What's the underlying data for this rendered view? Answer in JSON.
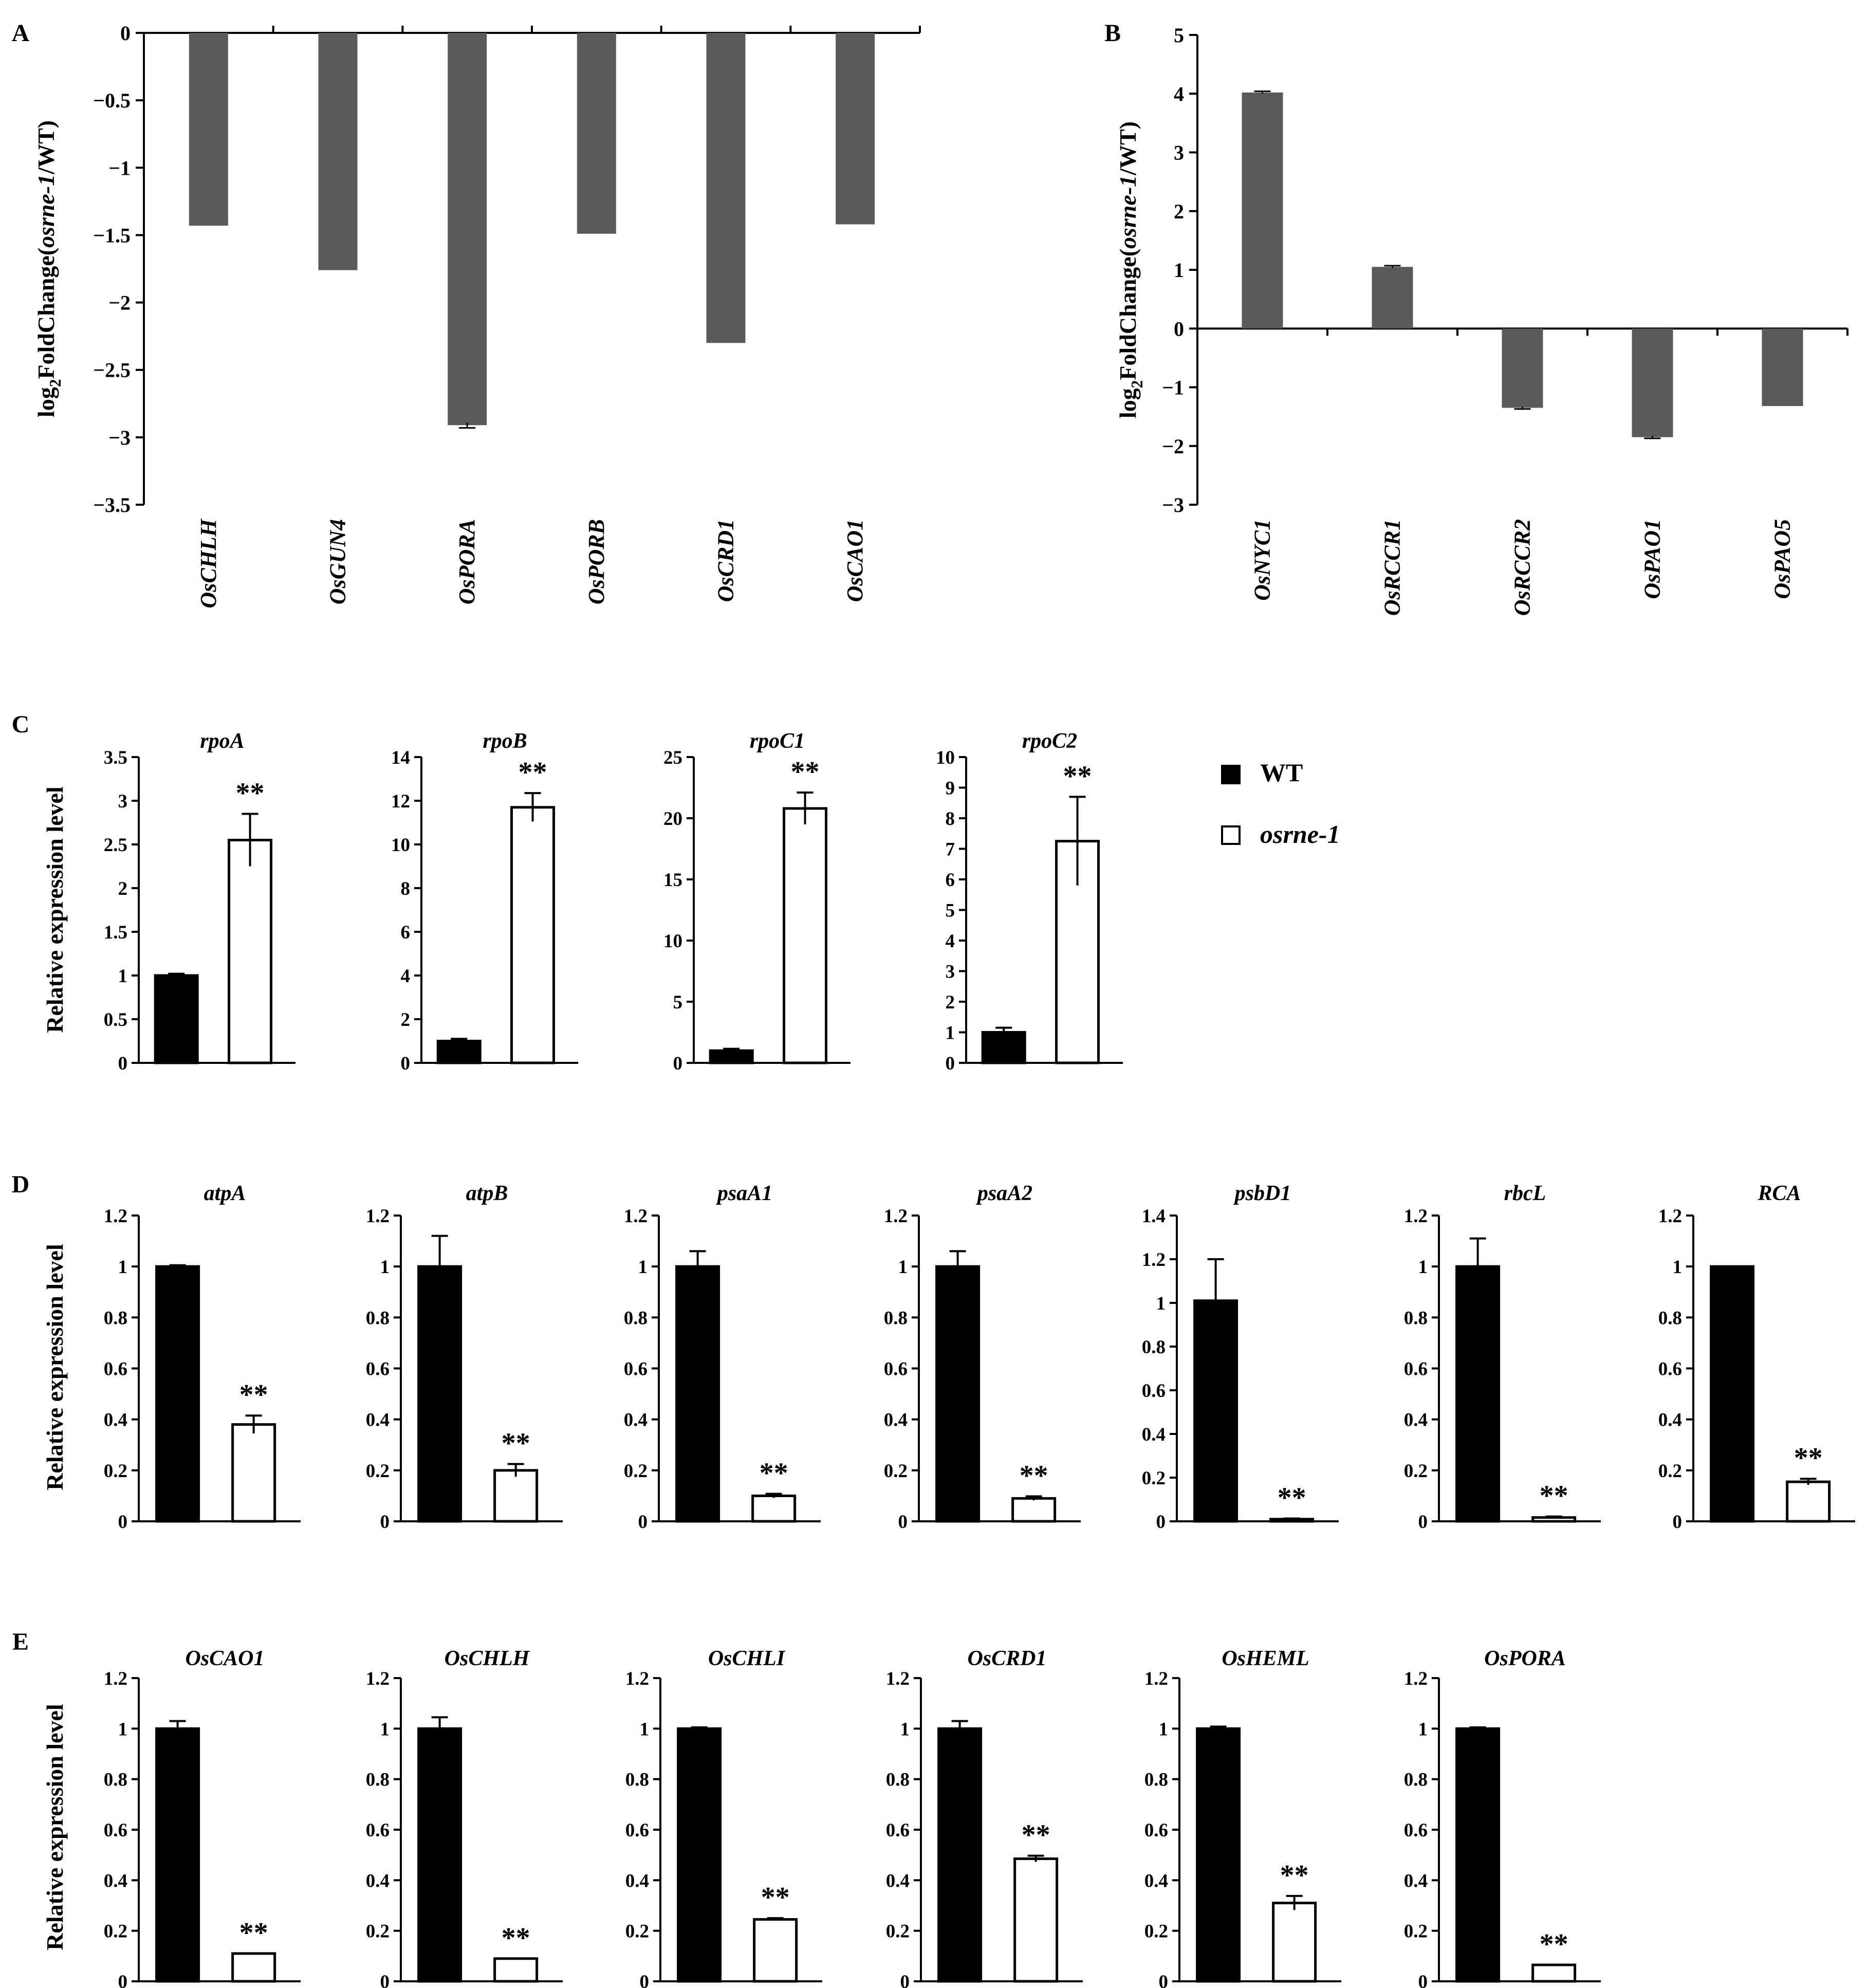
{
  "figure": {
    "panels": [
      "A",
      "B",
      "C",
      "D",
      "E"
    ],
    "ylabel_fold": "log2FoldChange(osrne-1/WT)",
    "ylabel_rel": "Relative expression level",
    "legend": {
      "wt": "WT",
      "mutant": "osrne-1"
    },
    "significance": "**"
  },
  "colors": {
    "fold_bar": "#5a5a5a",
    "wt_bar": "#000000",
    "mutant_bar": "#ffffff",
    "axis": "#000000"
  },
  "chart_data": [
    {
      "panel": "A",
      "type": "bar",
      "ylabel": "log2FoldChange(osrne-1/WT)",
      "ylim": [
        -3.5,
        0
      ],
      "yticks": [
        "0",
        "−0.5",
        "−1",
        "−1.5",
        "−2",
        "−2.5",
        "−3",
        "−3.5"
      ],
      "categories": [
        "OsCHLH",
        "OsGUN4",
        "OsPORA",
        "OsPORB",
        "OsCRD1",
        "OsCAO1"
      ],
      "values": [
        -1.43,
        -1.76,
        -2.91,
        -1.49,
        -2.3,
        -1.42
      ],
      "errors": [
        0,
        0,
        0.02,
        0,
        0,
        0
      ]
    },
    {
      "panel": "B",
      "type": "bar",
      "ylabel": "log2FoldChange(osrne-1/WT)",
      "ylim": [
        -3,
        5
      ],
      "yticks": [
        "5",
        "4",
        "3",
        "2",
        "1",
        "0",
        "−1",
        "−2",
        "−3"
      ],
      "categories": [
        "OsNYC1",
        "OsRCCR1",
        "OsRCCR2",
        "OsPAO1",
        "OsPAO5"
      ],
      "values": [
        4.02,
        1.05,
        -1.35,
        -1.85,
        -1.32
      ],
      "errors": [
        0.02,
        0.02,
        0.02,
        0.02,
        0
      ]
    },
    {
      "panel": "C",
      "type": "bar",
      "ylabel": "Relative expression level",
      "subplots": [
        {
          "title": "rpoA",
          "ylim": [
            0,
            3.5
          ],
          "yticks": [
            "3.5",
            "3",
            "2.5",
            "2",
            "1.5",
            "1",
            "0.5",
            "0"
          ],
          "series": [
            {
              "name": "WT",
              "value": 1.0,
              "error": 0.02
            },
            {
              "name": "osrne-1",
              "value": 2.55,
              "error": 0.3
            }
          ],
          "sig": "**"
        },
        {
          "title": "rpoB",
          "ylim": [
            0,
            14
          ],
          "yticks": [
            "14",
            "12",
            "10",
            "8",
            "6",
            "4",
            "2",
            "0"
          ],
          "series": [
            {
              "name": "WT",
              "value": 1.0,
              "error": 0.1
            },
            {
              "name": "osrne-1",
              "value": 11.7,
              "error": 0.65
            }
          ],
          "sig": "**"
        },
        {
          "title": "rpoC1",
          "ylim": [
            0,
            25
          ],
          "yticks": [
            "25",
            "20",
            "15",
            "10",
            "5",
            "0"
          ],
          "series": [
            {
              "name": "WT",
              "value": 1.0,
              "error": 0.15
            },
            {
              "name": "osrne-1",
              "value": 20.8,
              "error": 1.3
            }
          ],
          "sig": "**"
        },
        {
          "title": "rpoC2",
          "ylim": [
            0,
            10
          ],
          "yticks": [
            "10",
            "9",
            "8",
            "7",
            "6",
            "5",
            "4",
            "3",
            "2",
            "1",
            "0"
          ],
          "series": [
            {
              "name": "WT",
              "value": 1.0,
              "error": 0.15
            },
            {
              "name": "osrne-1",
              "value": 7.25,
              "error": 1.45
            }
          ],
          "sig": "**"
        }
      ]
    },
    {
      "panel": "D",
      "type": "bar",
      "ylabel": "Relative expression level",
      "subplots": [
        {
          "title": "atpA",
          "ylim": [
            0,
            1.2
          ],
          "yticks": [
            "1.2",
            "1",
            "0.8",
            "0.6",
            "0.4",
            "0.2",
            "0"
          ],
          "series": [
            {
              "name": "WT",
              "value": 1.0,
              "error": 0.005
            },
            {
              "name": "osrne-1",
              "value": 0.38,
              "error": 0.035
            }
          ],
          "sig": "**"
        },
        {
          "title": "atpB",
          "ylim": [
            0,
            1.2
          ],
          "yticks": [
            "1.2",
            "1",
            "0.8",
            "0.6",
            "0.4",
            "0.2",
            "0"
          ],
          "series": [
            {
              "name": "WT",
              "value": 1.0,
              "error": 0.12
            },
            {
              "name": "osrne-1",
              "value": 0.2,
              "error": 0.025
            }
          ],
          "sig": "**"
        },
        {
          "title": "psaA1",
          "ylim": [
            0,
            1.2
          ],
          "yticks": [
            "1.2",
            "1",
            "0.8",
            "0.6",
            "0.4",
            "0.2",
            "0"
          ],
          "series": [
            {
              "name": "WT",
              "value": 1.0,
              "error": 0.06
            },
            {
              "name": "osrne-1",
              "value": 0.1,
              "error": 0.008
            }
          ],
          "sig": "**"
        },
        {
          "title": "psaA2",
          "ylim": [
            0,
            1.2
          ],
          "yticks": [
            "1.2",
            "1",
            "0.8",
            "0.6",
            "0.4",
            "0.2",
            "0"
          ],
          "series": [
            {
              "name": "WT",
              "value": 1.0,
              "error": 0.06
            },
            {
              "name": "osrne-1",
              "value": 0.09,
              "error": 0.008
            }
          ],
          "sig": "**"
        },
        {
          "title": "psbD1",
          "ylim": [
            0,
            1.4
          ],
          "yticks": [
            "1.4",
            "1.2",
            "1",
            "0.8",
            "0.6",
            "0.4",
            "0.2",
            "0"
          ],
          "series": [
            {
              "name": "WT",
              "value": 1.01,
              "error": 0.19
            },
            {
              "name": "osrne-1",
              "value": 0.01,
              "error": 0.003
            }
          ],
          "sig": "**"
        },
        {
          "title": "rbcL",
          "ylim": [
            0,
            1.2
          ],
          "yticks": [
            "1.2",
            "1",
            "0.8",
            "0.6",
            "0.4",
            "0.2",
            "0"
          ],
          "series": [
            {
              "name": "WT",
              "value": 1.0,
              "error": 0.11
            },
            {
              "name": "osrne-1",
              "value": 0.015,
              "error": 0.004
            }
          ],
          "sig": "**"
        },
        {
          "title": "RCA",
          "ylim": [
            0,
            1.2
          ],
          "yticks": [
            "1.2",
            "1",
            "0.8",
            "0.6",
            "0.4",
            "0.2",
            "0"
          ],
          "series": [
            {
              "name": "WT",
              "value": 1.0,
              "error": 0.0
            },
            {
              "name": "osrne-1",
              "value": 0.155,
              "error": 0.012
            }
          ],
          "sig": "**"
        }
      ]
    },
    {
      "panel": "E",
      "type": "bar",
      "ylabel": "Relative expression level",
      "subplots": [
        {
          "title": "OsCAO1",
          "ylim": [
            0,
            1.2
          ],
          "yticks": [
            "1.2",
            "1",
            "0.8",
            "0.6",
            "0.4",
            "0.2",
            "0"
          ],
          "series": [
            {
              "name": "WT",
              "value": 1.0,
              "error": 0.03
            },
            {
              "name": "osrne-1",
              "value": 0.11,
              "error": 0.0
            }
          ],
          "sig": "**"
        },
        {
          "title": "OsCHLH",
          "ylim": [
            0,
            1.2
          ],
          "yticks": [
            "1.2",
            "1",
            "0.8",
            "0.6",
            "0.4",
            "0.2",
            "0"
          ],
          "series": [
            {
              "name": "WT",
              "value": 1.0,
              "error": 0.045
            },
            {
              "name": "osrne-1",
              "value": 0.09,
              "error": 0.0
            }
          ],
          "sig": "**"
        },
        {
          "title": "OsCHLI",
          "ylim": [
            0,
            1.2
          ],
          "yticks": [
            "1.2",
            "1",
            "0.8",
            "0.6",
            "0.4",
            "0.2",
            "0"
          ],
          "series": [
            {
              "name": "WT",
              "value": 1.0,
              "error": 0.005
            },
            {
              "name": "osrne-1",
              "value": 0.245,
              "error": 0.005
            }
          ],
          "sig": "**"
        },
        {
          "title": "OsCRD1",
          "ylim": [
            0,
            1.2
          ],
          "yticks": [
            "1.2",
            "1",
            "0.8",
            "0.6",
            "0.4",
            "0.2",
            "0"
          ],
          "series": [
            {
              "name": "WT",
              "value": 1.0,
              "error": 0.03
            },
            {
              "name": "osrne-1",
              "value": 0.485,
              "error": 0.012
            }
          ],
          "sig": "**"
        },
        {
          "title": "OsHEML",
          "ylim": [
            0,
            1.2
          ],
          "yticks": [
            "1.2",
            "1",
            "0.8",
            "0.6",
            "0.4",
            "0.2",
            "0"
          ],
          "series": [
            {
              "name": "WT",
              "value": 1.0,
              "error": 0.008
            },
            {
              "name": "osrne-1",
              "value": 0.31,
              "error": 0.028
            }
          ],
          "sig": "**"
        },
        {
          "title": "OsPORA",
          "ylim": [
            0,
            1.2
          ],
          "yticks": [
            "1.2",
            "1",
            "0.8",
            "0.6",
            "0.4",
            "0.2",
            "0"
          ],
          "series": [
            {
              "name": "WT",
              "value": 1.0,
              "error": 0.005
            },
            {
              "name": "osrne-1",
              "value": 0.065,
              "error": 0.0
            }
          ],
          "sig": "**"
        }
      ]
    }
  ]
}
